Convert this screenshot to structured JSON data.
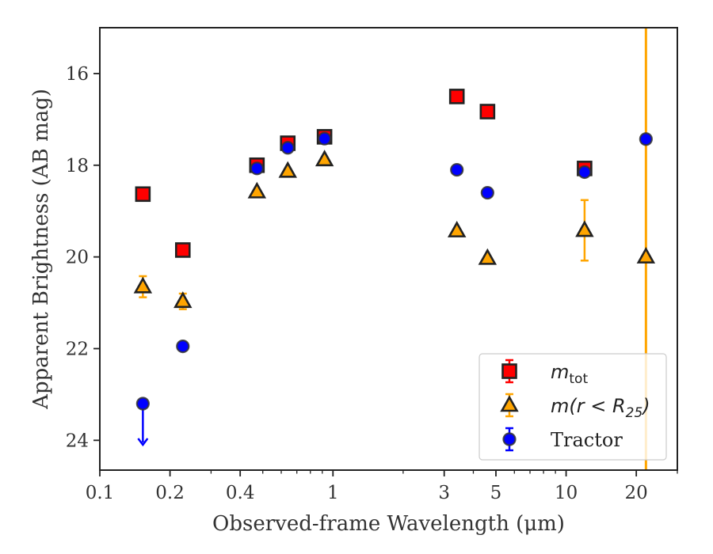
{
  "chart_data": {
    "type": "scatter",
    "title": "",
    "xlabel": "Observed-frame Wavelength (μm)",
    "ylabel": "Apparent Brightness (AB mag)",
    "xscale": "log",
    "xlim": [
      0.1,
      30
    ],
    "ylim": [
      24.65,
      15.0
    ],
    "y_inverted": true,
    "x_ticks": [
      0.1,
      0.2,
      0.4,
      1,
      3,
      5,
      10,
      20
    ],
    "x_tick_labels": [
      "0.1",
      "0.2",
      "0.4",
      "1",
      "3",
      "5",
      "10",
      "20"
    ],
    "y_ticks": [
      16,
      18,
      20,
      22,
      24
    ],
    "y_tick_labels": [
      "16",
      "18",
      "20",
      "22",
      "24"
    ],
    "grid": false,
    "legend_position": "bottom-right",
    "vertical_line": {
      "x": 22,
      "color": "#FFA500"
    },
    "series": [
      {
        "name": "m_tot",
        "legend_label": {
          "base": "m",
          "sub": "tot",
          "suffix": ""
        },
        "marker": "square",
        "color": "#FF0000",
        "edge": "#222222",
        "errcolor": "#FF0000",
        "points": [
          {
            "x": 0.153,
            "y": 18.63
          },
          {
            "x": 0.227,
            "y": 19.85
          },
          {
            "x": 0.472,
            "y": 18.0
          },
          {
            "x": 0.64,
            "y": 17.52
          },
          {
            "x": 0.92,
            "y": 17.38
          },
          {
            "x": 3.4,
            "y": 16.5
          },
          {
            "x": 4.6,
            "y": 16.83
          },
          {
            "x": 12.0,
            "y": 18.07
          }
        ]
      },
      {
        "name": "m(r < R25)",
        "legend_label": {
          "base": "m(r < R",
          "sub": "25",
          "suffix": ")"
        },
        "marker": "triangle",
        "color": "#FFA500",
        "edge": "#222222",
        "errcolor": "#FFA500",
        "points": [
          {
            "x": 0.153,
            "y": 20.65,
            "yerr": 0.23
          },
          {
            "x": 0.227,
            "y": 20.97,
            "yerr": 0.17
          },
          {
            "x": 0.472,
            "y": 18.58
          },
          {
            "x": 0.64,
            "y": 18.13
          },
          {
            "x": 0.92,
            "y": 17.88
          },
          {
            "x": 3.4,
            "y": 19.43
          },
          {
            "x": 4.6,
            "y": 20.03
          },
          {
            "x": 12.0,
            "y": 19.42,
            "yerr": 0.66
          },
          {
            "x": 22.0,
            "y": 20.0
          }
        ]
      },
      {
        "name": "Tractor",
        "legend_label": {
          "base": "Tractor",
          "sub": "",
          "suffix": ""
        },
        "marker": "circle",
        "color": "#0000FF",
        "edge": "#333333",
        "errcolor": "#0000FF",
        "points": [
          {
            "x": 0.153,
            "y": 23.2,
            "upper_limit": true
          },
          {
            "x": 0.227,
            "y": 21.95
          },
          {
            "x": 0.472,
            "y": 18.07
          },
          {
            "x": 0.64,
            "y": 17.62
          },
          {
            "x": 0.92,
            "y": 17.42
          },
          {
            "x": 3.4,
            "y": 18.1
          },
          {
            "x": 4.6,
            "y": 18.6
          },
          {
            "x": 12.0,
            "y": 18.15
          },
          {
            "x": 22.0,
            "y": 17.43
          }
        ]
      }
    ]
  }
}
